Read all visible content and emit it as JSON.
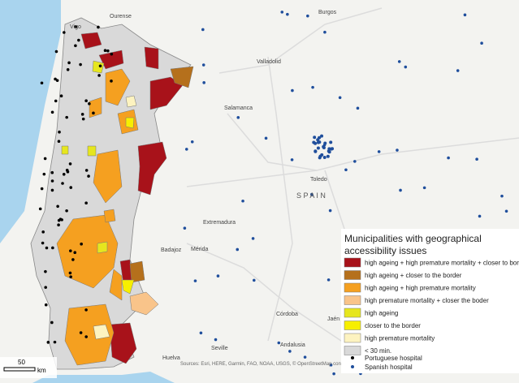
{
  "map": {
    "places": [
      {
        "label": "Ourense"
      },
      {
        "label": "Burgos"
      },
      {
        "label": "Vigo"
      },
      {
        "label": "Valladolid"
      },
      {
        "label": "Salamanca"
      },
      {
        "label": "Toledo"
      },
      {
        "label": "S P A I N"
      },
      {
        "label": "Extremadura"
      },
      {
        "label": "Badajoz"
      },
      {
        "label": "Mérida"
      },
      {
        "label": "Córdoba"
      },
      {
        "label": "Jaén"
      },
      {
        "label": "Seville"
      },
      {
        "label": "Huelva"
      },
      {
        "label": "Andalusia"
      }
    ]
  },
  "legend": {
    "title_lines": [
      "Municipalities with geographical",
      "accessibility issues"
    ],
    "items": [
      {
        "label": "high ageing + high premature mortality + closer to border",
        "color": "#a8121a"
      },
      {
        "label": "high ageing + closer to the border",
        "color": "#b5701c"
      },
      {
        "label": "high ageing + high premature mortality",
        "color": "#f5a020"
      },
      {
        "label": "high premature mortality + closer the boder",
        "color": "#f9c48a"
      },
      {
        "label": "high ageing",
        "color": "#e6e61e"
      },
      {
        "label": "closer to the border",
        "color": "#f7ef00"
      },
      {
        "label": "high premature mortality",
        "color": "#fdf3c0"
      },
      {
        "label": "< 30 min.",
        "color": "#d9d9d9"
      }
    ],
    "points": [
      {
        "label": "Portuguese hospital",
        "color": "#000000"
      },
      {
        "label": "Spanish hospital",
        "color": "#1f4e9c"
      }
    ]
  },
  "scale": {
    "label": "50",
    "unit": "km"
  },
  "attribution": "Sources: Esri, HERE, Garmin, FAO, NOAA, USGS, © OpenStreetMap contributors, and the GIS User Community"
}
